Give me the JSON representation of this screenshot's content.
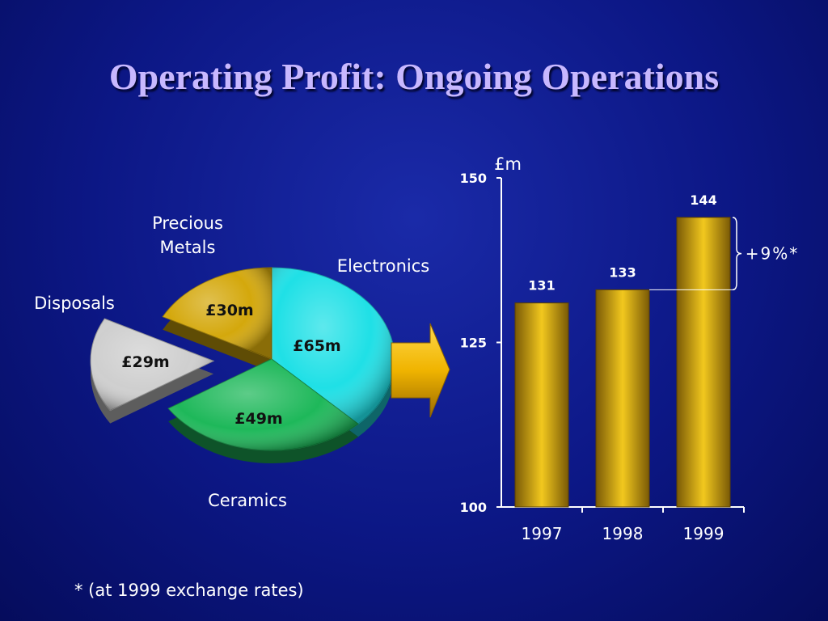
{
  "slide": {
    "title": "Operating Profit: Ongoing Operations",
    "footnote": "* (at 1999 exchange rates)"
  },
  "chart_data": [
    {
      "type": "pie",
      "slices": [
        {
          "category_lines": [
            "Electronics"
          ],
          "value_label": "£65m",
          "value": 65,
          "color": "#1fe0e6",
          "exploded": false
        },
        {
          "category_lines": [
            "Ceramics"
          ],
          "value_label": "£49m",
          "value": 49,
          "color": "#1eb85a",
          "exploded": false
        },
        {
          "category_lines": [
            "Disposals"
          ],
          "value_label": "£29m",
          "value": 29,
          "color": "#cfcfcf",
          "exploded": true
        },
        {
          "category_lines": [
            "Precious",
            "Metals"
          ],
          "value_label": "£30m",
          "value": 30,
          "color": "#d4a80c",
          "exploded": false
        }
      ]
    },
    {
      "type": "bar",
      "categories": [
        "1997",
        "1998",
        "1999"
      ],
      "values": [
        131,
        133,
        144
      ],
      "data_labels": [
        "131",
        "133",
        "144"
      ],
      "ylabel": "£m",
      "ylim": [
        100,
        150
      ],
      "yticks": [
        100,
        125,
        150
      ],
      "bar_color": "#c89a1a",
      "annotation": "+9%*"
    }
  ]
}
